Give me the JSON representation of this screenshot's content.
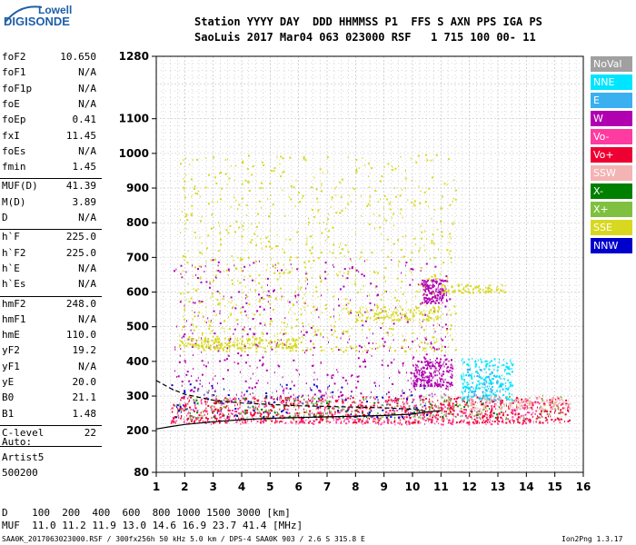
{
  "logo": {
    "top": "Lowell",
    "bottom": "DIGISONDE"
  },
  "header": {
    "row1": "Station YYYY DAY  DDD HHMMSS P1  FFS S AXN PPS IGA PS",
    "row2": "SaoLuis 2017 Mar04 063 023000 RSF   1 715 100 00- 11"
  },
  "params": [
    {
      "name": "foF2",
      "value": "10.650"
    },
    {
      "name": "foF1",
      "value": "N/A"
    },
    {
      "name": "foF1p",
      "value": "N/A"
    },
    {
      "name": "foE",
      "value": "N/A"
    },
    {
      "name": "foEp",
      "value": "0.41"
    },
    {
      "name": "fxI",
      "value": "11.45"
    },
    {
      "name": "foEs",
      "value": "N/A"
    },
    {
      "name": "fmin",
      "value": "1.45"
    },
    {
      "name": "MUF(D)",
      "value": "41.39"
    },
    {
      "name": "M(D)",
      "value": "3.89"
    },
    {
      "name": "D",
      "value": "N/A"
    },
    {
      "name": "h`F",
      "value": "225.0"
    },
    {
      "name": "h`F2",
      "value": "225.0"
    },
    {
      "name": "h`E",
      "value": "N/A"
    },
    {
      "name": "h`Es",
      "value": "N/A"
    },
    {
      "name": "hmF2",
      "value": "248.0"
    },
    {
      "name": "hmF1",
      "value": "N/A"
    },
    {
      "name": "hmE",
      "value": "110.0"
    },
    {
      "name": "yF2",
      "value": "19.2"
    },
    {
      "name": "yF1",
      "value": "N/A"
    },
    {
      "name": "yE",
      "value": "20.0"
    },
    {
      "name": "B0",
      "value": "21.1"
    },
    {
      "name": "B1",
      "value": "1.48"
    },
    {
      "name": "C-level",
      "value": "22"
    }
  ],
  "autoscale": {
    "line1": "Auto:",
    "line2": "Artist5",
    "line3": "500200"
  },
  "legend": [
    {
      "label": "NoVal",
      "color": "#a0a0a0"
    },
    {
      "label": "NNE",
      "color": "#00e5ff"
    },
    {
      "label": "E",
      "color": "#3ab0f0"
    },
    {
      "label": "W",
      "color": "#b000b0"
    },
    {
      "label": "Vo-",
      "color": "#ff3aa0"
    },
    {
      "label": "Vo+",
      "color": "#ee0033"
    },
    {
      "label": "SSW",
      "color": "#f4b4b4"
    },
    {
      "label": "X-",
      "color": "#008000"
    },
    {
      "label": "X+",
      "color": "#80c040"
    },
    {
      "label": "SSE",
      "color": "#d8d820"
    },
    {
      "label": "NNW",
      "color": "#0000cc"
    }
  ],
  "mufTable": {
    "row1": "D    100  200  400  600  800 1000 1500 3000 [km]",
    "row2": "MUF  11.0 11.2 11.9 13.0 14.6 16.9 23.7 41.4 [MHz]"
  },
  "footer": {
    "left": "SAA0K_2017063023000.RSF / 300fx256h 50 kHz 5.0 km / DPS-4 SAA0K 903 / 2.6 S 315.8 E",
    "right": "Ion2Png 1.3.17"
  },
  "chart_data": {
    "type": "scatter",
    "title": "",
    "xlabel": "",
    "ylabel": "",
    "xlim": [
      1,
      16
    ],
    "ylim": [
      80,
      1280
    ],
    "xticks": [
      1,
      2,
      3,
      4,
      5,
      6,
      7,
      8,
      9,
      10,
      11,
      12,
      13,
      14,
      15,
      16
    ],
    "yticks": [
      80,
      200,
      300,
      400,
      500,
      600,
      700,
      800,
      900,
      1000,
      1100,
      1280
    ],
    "grid": true,
    "legend_position": "right",
    "trace": [
      {
        "x": 1.0,
        "y": 205
      },
      {
        "x": 1.5,
        "y": 212
      },
      {
        "x": 2.0,
        "y": 218
      },
      {
        "x": 3.0,
        "y": 226
      },
      {
        "x": 4.0,
        "y": 232
      },
      {
        "x": 5.0,
        "y": 236
      },
      {
        "x": 6.0,
        "y": 238
      },
      {
        "x": 7.0,
        "y": 240
      },
      {
        "x": 8.0,
        "y": 242
      },
      {
        "x": 9.0,
        "y": 244
      },
      {
        "x": 10.0,
        "y": 248
      },
      {
        "x": 10.6,
        "y": 255
      },
      {
        "x": 11.0,
        "y": 258
      }
    ],
    "profile": [
      {
        "x": 1.0,
        "y": 345
      },
      {
        "x": 1.5,
        "y": 322
      },
      {
        "x": 2.0,
        "y": 305
      },
      {
        "x": 3.0,
        "y": 288
      },
      {
        "x": 4.0,
        "y": 280
      },
      {
        "x": 5.0,
        "y": 276
      },
      {
        "x": 6.0,
        "y": 272
      },
      {
        "x": 7.0,
        "y": 270
      },
      {
        "x": 8.0,
        "y": 268
      },
      {
        "x": 9.0,
        "y": 266
      },
      {
        "x": 10.0,
        "y": 262
      },
      {
        "x": 10.6,
        "y": 255
      }
    ],
    "clusters": [
      {
        "name": "Vo+",
        "xRange": [
          1.5,
          15.5
        ],
        "yRange": [
          225,
          300
        ],
        "count": 900,
        "color": "#ee0033"
      },
      {
        "name": "Vo-",
        "xRange": [
          1.5,
          14.5
        ],
        "yRange": [
          220,
          300
        ],
        "count": 350,
        "color": "#ff3aa0"
      },
      {
        "name": "X+",
        "xRange": [
          1.6,
          15.2
        ],
        "yRange": [
          235,
          305
        ],
        "count": 180,
        "color": "#80c040"
      },
      {
        "name": "X-",
        "xRange": [
          2.0,
          13.5
        ],
        "yRange": [
          240,
          300
        ],
        "count": 90,
        "color": "#008000"
      },
      {
        "name": "NNW",
        "xRange": [
          1.5,
          10.5
        ],
        "yRange": [
          240,
          340
        ],
        "count": 120,
        "color": "#0000cc"
      },
      {
        "name": "W",
        "xRange": [
          1.6,
          11.3
        ],
        "yRange": [
          300,
          700
        ],
        "count": 500,
        "color": "#b000b0"
      },
      {
        "name": "W",
        "xRange": [
          10.0,
          11.4
        ],
        "yRange": [
          330,
          410
        ],
        "count": 220,
        "color": "#b000b0"
      },
      {
        "name": "W",
        "xRange": [
          10.3,
          11.2
        ],
        "yRange": [
          570,
          640
        ],
        "count": 160,
        "color": "#b000b0"
      },
      {
        "name": "SSE",
        "xRange": [
          1.8,
          11.5
        ],
        "yRange": [
          430,
          1000
        ],
        "count": 900,
        "color": "#d8d820"
      },
      {
        "name": "SSE",
        "xRange": [
          1.8,
          6.0
        ],
        "yRange": [
          440,
          470
        ],
        "count": 200,
        "color": "#d8d820"
      },
      {
        "name": "SSE",
        "xRange": [
          8.0,
          11.0
        ],
        "yRange": [
          520,
          560
        ],
        "count": 140,
        "color": "#d8d820"
      },
      {
        "name": "SSE",
        "xRange": [
          11.0,
          13.3
        ],
        "yRange": [
          600,
          625
        ],
        "count": 90,
        "color": "#d8d820"
      },
      {
        "name": "NNE",
        "xRange": [
          11.7,
          13.5
        ],
        "yRange": [
          290,
          410
        ],
        "count": 260,
        "color": "#00e5ff"
      },
      {
        "name": "E",
        "xRange": [
          11.8,
          13.2
        ],
        "yRange": [
          300,
          380
        ],
        "count": 60,
        "color": "#3ab0f0"
      },
      {
        "name": "SSW",
        "xRange": [
          12.0,
          15.6
        ],
        "yRange": [
          265,
          300
        ],
        "count": 120,
        "color": "#f4b4b4"
      },
      {
        "name": "NoVal",
        "xRange": [
          2.0,
          13.0
        ],
        "yRange": [
          240,
          320
        ],
        "count": 60,
        "color": "#a0a0a0"
      }
    ]
  }
}
